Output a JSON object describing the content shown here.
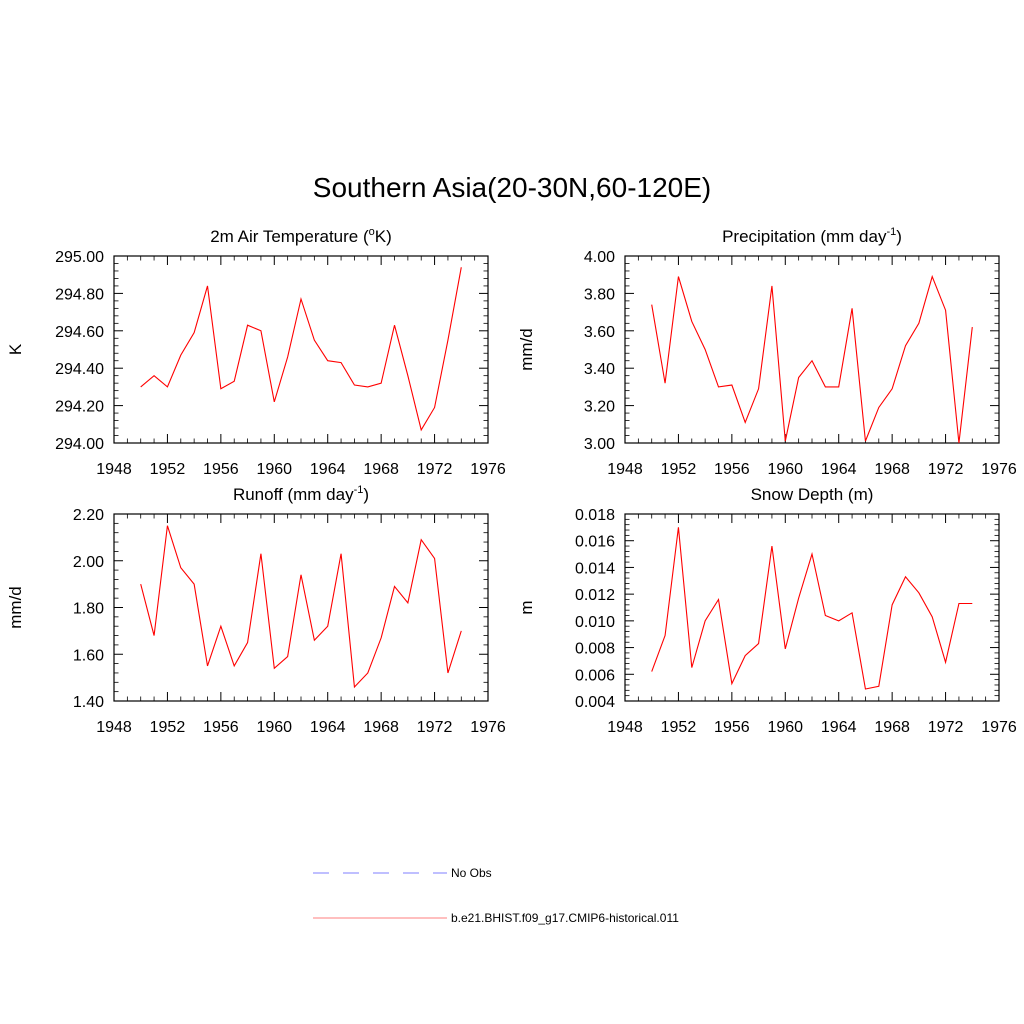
{
  "figure": {
    "title": "Southern Asia(20-30N,60-120E)"
  },
  "legend": [
    {
      "label": "No Obs",
      "color": "#9999ff",
      "style": "dashed"
    },
    {
      "label": "b.e21.BHIST.f09_g17.CMIP6-historical.011",
      "color": "#ff9999",
      "style": "solid"
    }
  ],
  "chart_data": [
    {
      "type": "line",
      "title": "2m Air Temperature (°K)",
      "title_parts": [
        "2m Air Temperature (",
        "o",
        "K)"
      ],
      "ylabel": "K",
      "xlabel": "",
      "xlim": [
        1948,
        1976
      ],
      "xticks": [
        "1948",
        "1952",
        "1956",
        "1960",
        "1964",
        "1968",
        "1972",
        "1976"
      ],
      "ylim": [
        294.0,
        295.0
      ],
      "yticks": [
        "294.00",
        "294.20",
        "294.40",
        "294.60",
        "294.80",
        "295.00"
      ],
      "series": [
        {
          "name": "b.e21.BHIST.f09_g17.CMIP6-historical.011",
          "color": "#ff0000",
          "x": [
            1950,
            1951,
            1952,
            1953,
            1954,
            1955,
            1956,
            1957,
            1958,
            1959,
            1960,
            1961,
            1962,
            1963,
            1964,
            1965,
            1966,
            1967,
            1968,
            1969,
            1970,
            1971,
            1972,
            1973,
            1974
          ],
          "values": [
            294.3,
            294.36,
            294.3,
            294.47,
            294.59,
            294.84,
            294.29,
            294.33,
            294.63,
            294.6,
            294.22,
            294.46,
            294.77,
            294.55,
            294.44,
            294.43,
            294.31,
            294.3,
            294.32,
            294.63,
            294.36,
            294.07,
            294.19,
            294.55,
            294.94
          ]
        }
      ]
    },
    {
      "type": "line",
      "title": "Precipitation (mm day-1)",
      "title_parts": [
        "Precipitation (mm day",
        "-1",
        ")"
      ],
      "ylabel": "mm/d",
      "xlabel": "",
      "xlim": [
        1948,
        1976
      ],
      "xticks": [
        "1948",
        "1952",
        "1956",
        "1960",
        "1964",
        "1968",
        "1972",
        "1976"
      ],
      "ylim": [
        3.0,
        4.0
      ],
      "yticks": [
        "3.00",
        "3.20",
        "3.40",
        "3.60",
        "3.80",
        "4.00"
      ],
      "series": [
        {
          "name": "b.e21.BHIST.f09_g17.CMIP6-historical.011",
          "color": "#ff0000",
          "x": [
            1950,
            1951,
            1952,
            1953,
            1954,
            1955,
            1956,
            1957,
            1958,
            1959,
            1960,
            1961,
            1962,
            1963,
            1964,
            1965,
            1966,
            1967,
            1968,
            1969,
            1970,
            1971,
            1972,
            1973,
            1974
          ],
          "values": [
            3.74,
            3.32,
            3.89,
            3.65,
            3.5,
            3.3,
            3.31,
            3.11,
            3.29,
            3.84,
            3.01,
            3.35,
            3.44,
            3.3,
            3.3,
            3.72,
            3.01,
            3.19,
            3.29,
            3.52,
            3.64,
            3.89,
            3.71,
            3.0,
            3.62
          ]
        }
      ]
    },
    {
      "type": "line",
      "title": "Runoff (mm day-1)",
      "title_parts": [
        "Runoff (mm day",
        "-1",
        ")"
      ],
      "ylabel": "mm/d",
      "xlabel": "",
      "xlim": [
        1948,
        1976
      ],
      "xticks": [
        "1948",
        "1952",
        "1956",
        "1960",
        "1964",
        "1968",
        "1972",
        "1976"
      ],
      "ylim": [
        1.4,
        2.2
      ],
      "yticks": [
        "1.40",
        "1.60",
        "1.80",
        "2.00",
        "2.20"
      ],
      "series": [
        {
          "name": "b.e21.BHIST.f09_g17.CMIP6-historical.011",
          "color": "#ff0000",
          "x": [
            1950,
            1951,
            1952,
            1953,
            1954,
            1955,
            1956,
            1957,
            1958,
            1959,
            1960,
            1961,
            1962,
            1963,
            1964,
            1965,
            1966,
            1967,
            1968,
            1969,
            1970,
            1971,
            1972,
            1973,
            1974
          ],
          "values": [
            1.9,
            1.68,
            2.15,
            1.97,
            1.9,
            1.55,
            1.72,
            1.55,
            1.65,
            2.03,
            1.54,
            1.59,
            1.94,
            1.66,
            1.72,
            2.03,
            1.46,
            1.52,
            1.67,
            1.89,
            1.82,
            2.09,
            2.01,
            1.52,
            1.7
          ]
        }
      ]
    },
    {
      "type": "line",
      "title": "Snow Depth (m)",
      "title_parts": [
        "Snow Depth (m)"
      ],
      "ylabel": "m",
      "xlabel": "",
      "xlim": [
        1948,
        1976
      ],
      "xticks": [
        "1948",
        "1952",
        "1956",
        "1960",
        "1964",
        "1968",
        "1972",
        "1976"
      ],
      "ylim": [
        0.004,
        0.018
      ],
      "yticks": [
        "0.004",
        "0.006",
        "0.008",
        "0.010",
        "0.012",
        "0.014",
        "0.016",
        "0.018"
      ],
      "series": [
        {
          "name": "b.e21.BHIST.f09_g17.CMIP6-historical.011",
          "color": "#ff0000",
          "x": [
            1950,
            1951,
            1952,
            1953,
            1954,
            1955,
            1956,
            1957,
            1958,
            1959,
            1960,
            1961,
            1962,
            1963,
            1964,
            1965,
            1966,
            1967,
            1968,
            1969,
            1970,
            1971,
            1972,
            1973,
            1974
          ],
          "values": [
            0.0062,
            0.0089,
            0.017,
            0.0065,
            0.01,
            0.0116,
            0.0053,
            0.0074,
            0.0083,
            0.0156,
            0.0079,
            0.0117,
            0.015,
            0.0104,
            0.01,
            0.0106,
            0.0049,
            0.0051,
            0.0112,
            0.0133,
            0.0121,
            0.0103,
            0.0069,
            0.0113,
            0.0113
          ]
        }
      ]
    }
  ]
}
